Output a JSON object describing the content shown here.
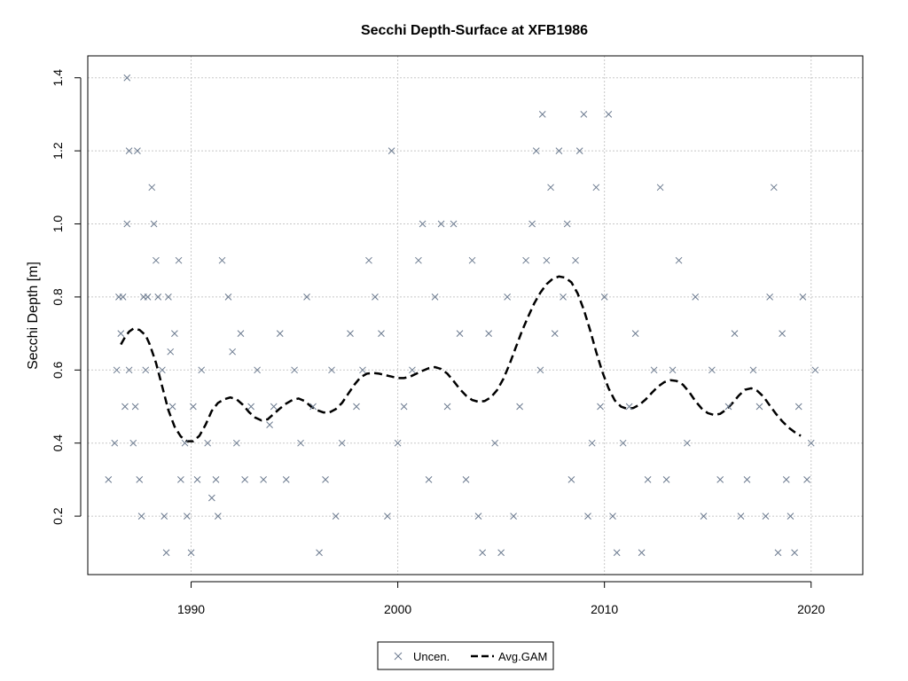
{
  "chart_data": {
    "type": "scatter",
    "title": "Secchi Depth-Surface at XFB1986",
    "xlabel": "",
    "ylabel": "Secchi Depth [m]",
    "xlim": [
      1985,
      2022.5
    ],
    "ylim": [
      0.04,
      1.46
    ],
    "x_ticks": [
      1990,
      2000,
      2010,
      2020
    ],
    "y_ticks": [
      0.2,
      0.4,
      0.6,
      0.8,
      1.0,
      1.2,
      1.4
    ],
    "y_tick_labels": [
      "0.2",
      "0.4",
      "0.6",
      "0.8",
      "1.0",
      "1.2",
      "1.4"
    ],
    "grid": true,
    "legend_placement": "bottom-center",
    "colors": {
      "points": "#6b7a8f",
      "gam": "#000000",
      "grid": "#c8c8c8",
      "axis": "#000000"
    },
    "series": [
      {
        "name": "Uncen.",
        "kind": "scatter",
        "marker": "x"
      },
      {
        "name": "Avg.GAM",
        "kind": "line",
        "dash": "dashed"
      }
    ],
    "points": [
      [
        1986.0,
        0.3
      ],
      [
        1986.3,
        0.4
      ],
      [
        1986.4,
        0.6
      ],
      [
        1986.5,
        0.8
      ],
      [
        1986.6,
        0.7
      ],
      [
        1986.7,
        0.8
      ],
      [
        1986.8,
        0.5
      ],
      [
        1986.9,
        1.4
      ],
      [
        1986.9,
        1.0
      ],
      [
        1987.0,
        1.2
      ],
      [
        1987.0,
        0.6
      ],
      [
        1987.2,
        0.4
      ],
      [
        1987.3,
        0.5
      ],
      [
        1987.4,
        1.2
      ],
      [
        1987.5,
        0.3
      ],
      [
        1987.6,
        0.2
      ],
      [
        1987.7,
        0.8
      ],
      [
        1987.8,
        0.6
      ],
      [
        1987.9,
        0.8
      ],
      [
        1988.1,
        1.1
      ],
      [
        1988.2,
        1.0
      ],
      [
        1988.3,
        0.9
      ],
      [
        1988.4,
        0.8
      ],
      [
        1988.6,
        0.6
      ],
      [
        1988.7,
        0.2
      ],
      [
        1988.8,
        0.1
      ],
      [
        1988.9,
        0.8
      ],
      [
        1989.0,
        0.65
      ],
      [
        1989.1,
        0.5
      ],
      [
        1989.2,
        0.7
      ],
      [
        1989.4,
        0.9
      ],
      [
        1989.5,
        0.3
      ],
      [
        1989.7,
        0.4
      ],
      [
        1989.8,
        0.2
      ],
      [
        1990.0,
        0.1
      ],
      [
        1990.1,
        0.5
      ],
      [
        1990.3,
        0.3
      ],
      [
        1990.5,
        0.6
      ],
      [
        1990.8,
        0.4
      ],
      [
        1991.0,
        0.25
      ],
      [
        1991.2,
        0.3
      ],
      [
        1991.3,
        0.2
      ],
      [
        1991.5,
        0.9
      ],
      [
        1991.8,
        0.8
      ],
      [
        1992.0,
        0.65
      ],
      [
        1992.2,
        0.4
      ],
      [
        1992.4,
        0.7
      ],
      [
        1992.6,
        0.3
      ],
      [
        1992.9,
        0.5
      ],
      [
        1993.2,
        0.6
      ],
      [
        1993.5,
        0.3
      ],
      [
        1993.8,
        0.45
      ],
      [
        1994.0,
        0.5
      ],
      [
        1994.3,
        0.7
      ],
      [
        1994.6,
        0.3
      ],
      [
        1995.0,
        0.6
      ],
      [
        1995.3,
        0.4
      ],
      [
        1995.6,
        0.8
      ],
      [
        1995.9,
        0.5
      ],
      [
        1996.2,
        0.1
      ],
      [
        1996.5,
        0.3
      ],
      [
        1996.8,
        0.6
      ],
      [
        1997.0,
        0.2
      ],
      [
        1997.3,
        0.4
      ],
      [
        1997.7,
        0.7
      ],
      [
        1998.0,
        0.5
      ],
      [
        1998.3,
        0.6
      ],
      [
        1998.6,
        0.9
      ],
      [
        1998.9,
        0.8
      ],
      [
        1999.2,
        0.7
      ],
      [
        1999.5,
        0.2
      ],
      [
        1999.7,
        1.2
      ],
      [
        2000.0,
        0.4
      ],
      [
        2000.3,
        0.5
      ],
      [
        2000.7,
        0.6
      ],
      [
        2001.0,
        0.9
      ],
      [
        2001.2,
        1.0
      ],
      [
        2001.5,
        0.3
      ],
      [
        2001.8,
        0.8
      ],
      [
        2002.1,
        1.0
      ],
      [
        2002.4,
        0.5
      ],
      [
        2002.7,
        1.0
      ],
      [
        2003.0,
        0.7
      ],
      [
        2003.3,
        0.3
      ],
      [
        2003.6,
        0.9
      ],
      [
        2003.9,
        0.2
      ],
      [
        2004.1,
        0.1
      ],
      [
        2004.4,
        0.7
      ],
      [
        2004.7,
        0.4
      ],
      [
        2005.0,
        0.1
      ],
      [
        2005.3,
        0.8
      ],
      [
        2005.6,
        0.2
      ],
      [
        2005.9,
        0.5
      ],
      [
        2006.2,
        0.9
      ],
      [
        2006.5,
        1.0
      ],
      [
        2006.7,
        1.2
      ],
      [
        2006.9,
        0.6
      ],
      [
        2007.0,
        1.3
      ],
      [
        2007.2,
        0.9
      ],
      [
        2007.4,
        1.1
      ],
      [
        2007.6,
        0.7
      ],
      [
        2007.8,
        1.2
      ],
      [
        2008.0,
        0.8
      ],
      [
        2008.2,
        1.0
      ],
      [
        2008.4,
        0.3
      ],
      [
        2008.6,
        0.9
      ],
      [
        2008.8,
        1.2
      ],
      [
        2009.0,
        1.3
      ],
      [
        2009.2,
        0.2
      ],
      [
        2009.4,
        0.4
      ],
      [
        2009.6,
        1.1
      ],
      [
        2009.8,
        0.5
      ],
      [
        2010.0,
        0.8
      ],
      [
        2010.2,
        1.3
      ],
      [
        2010.4,
        0.2
      ],
      [
        2010.6,
        0.1
      ],
      [
        2010.9,
        0.4
      ],
      [
        2011.2,
        0.5
      ],
      [
        2011.5,
        0.7
      ],
      [
        2011.8,
        0.1
      ],
      [
        2012.1,
        0.3
      ],
      [
        2012.4,
        0.6
      ],
      [
        2012.7,
        1.1
      ],
      [
        2013.0,
        0.3
      ],
      [
        2013.3,
        0.6
      ],
      [
        2013.6,
        0.9
      ],
      [
        2014.0,
        0.4
      ],
      [
        2014.4,
        0.8
      ],
      [
        2014.8,
        0.2
      ],
      [
        2015.2,
        0.6
      ],
      [
        2015.6,
        0.3
      ],
      [
        2016.0,
        0.5
      ],
      [
        2016.3,
        0.7
      ],
      [
        2016.6,
        0.2
      ],
      [
        2016.9,
        0.3
      ],
      [
        2017.2,
        0.6
      ],
      [
        2017.5,
        0.5
      ],
      [
        2017.8,
        0.2
      ],
      [
        2018.0,
        0.8
      ],
      [
        2018.2,
        1.1
      ],
      [
        2018.4,
        0.1
      ],
      [
        2018.6,
        0.7
      ],
      [
        2018.8,
        0.3
      ],
      [
        2019.0,
        0.2
      ],
      [
        2019.2,
        0.1
      ],
      [
        2019.4,
        0.5
      ],
      [
        2019.6,
        0.8
      ],
      [
        2019.8,
        0.3
      ],
      [
        2020.0,
        0.4
      ],
      [
        2020.2,
        0.6
      ]
    ],
    "gam": [
      [
        1986.6,
        0.67
      ],
      [
        1986.8,
        0.69
      ],
      [
        1987.0,
        0.705
      ],
      [
        1987.2,
        0.713
      ],
      [
        1987.5,
        0.71
      ],
      [
        1987.8,
        0.695
      ],
      [
        1988.0,
        0.67
      ],
      [
        1988.3,
        0.62
      ],
      [
        1988.6,
        0.555
      ],
      [
        1988.9,
        0.49
      ],
      [
        1989.2,
        0.445
      ],
      [
        1989.5,
        0.418
      ],
      [
        1989.8,
        0.405
      ],
      [
        1990.1,
        0.405
      ],
      [
        1990.4,
        0.42
      ],
      [
        1990.7,
        0.45
      ],
      [
        1991.0,
        0.488
      ],
      [
        1991.3,
        0.51
      ],
      [
        1991.6,
        0.52
      ],
      [
        1991.9,
        0.525
      ],
      [
        1992.2,
        0.52
      ],
      [
        1992.5,
        0.505
      ],
      [
        1992.8,
        0.485
      ],
      [
        1993.1,
        0.47
      ],
      [
        1993.4,
        0.462
      ],
      [
        1993.7,
        0.465
      ],
      [
        1994.0,
        0.48
      ],
      [
        1994.3,
        0.495
      ],
      [
        1994.6,
        0.508
      ],
      [
        1994.9,
        0.518
      ],
      [
        1995.2,
        0.522
      ],
      [
        1995.5,
        0.515
      ],
      [
        1995.8,
        0.5
      ],
      [
        1996.1,
        0.49
      ],
      [
        1996.4,
        0.484
      ],
      [
        1996.7,
        0.484
      ],
      [
        1997.0,
        0.493
      ],
      [
        1997.3,
        0.51
      ],
      [
        1997.6,
        0.535
      ],
      [
        1997.9,
        0.56
      ],
      [
        1998.2,
        0.58
      ],
      [
        1998.5,
        0.59
      ],
      [
        1998.8,
        0.592
      ],
      [
        1999.1,
        0.59
      ],
      [
        1999.4,
        0.586
      ],
      [
        1999.7,
        0.582
      ],
      [
        2000.0,
        0.578
      ],
      [
        2000.3,
        0.578
      ],
      [
        2000.6,
        0.582
      ],
      [
        2000.9,
        0.59
      ],
      [
        2001.2,
        0.598
      ],
      [
        2001.5,
        0.605
      ],
      [
        2001.8,
        0.608
      ],
      [
        2002.1,
        0.603
      ],
      [
        2002.4,
        0.59
      ],
      [
        2002.7,
        0.57
      ],
      [
        2003.0,
        0.548
      ],
      [
        2003.3,
        0.53
      ],
      [
        2003.6,
        0.518
      ],
      [
        2003.9,
        0.513
      ],
      [
        2004.2,
        0.515
      ],
      [
        2004.5,
        0.525
      ],
      [
        2004.8,
        0.545
      ],
      [
        2005.1,
        0.575
      ],
      [
        2005.4,
        0.615
      ],
      [
        2005.7,
        0.66
      ],
      [
        2006.0,
        0.705
      ],
      [
        2006.3,
        0.745
      ],
      [
        2006.6,
        0.782
      ],
      [
        2006.9,
        0.812
      ],
      [
        2007.2,
        0.835
      ],
      [
        2007.5,
        0.85
      ],
      [
        2007.8,
        0.856
      ],
      [
        2008.1,
        0.853
      ],
      [
        2008.4,
        0.84
      ],
      [
        2008.7,
        0.81
      ],
      [
        2009.0,
        0.765
      ],
      [
        2009.3,
        0.71
      ],
      [
        2009.6,
        0.65
      ],
      [
        2009.9,
        0.595
      ],
      [
        2010.2,
        0.55
      ],
      [
        2010.5,
        0.517
      ],
      [
        2010.8,
        0.5
      ],
      [
        2011.1,
        0.494
      ],
      [
        2011.4,
        0.496
      ],
      [
        2011.7,
        0.505
      ],
      [
        2012.0,
        0.52
      ],
      [
        2012.3,
        0.538
      ],
      [
        2012.6,
        0.555
      ],
      [
        2012.9,
        0.567
      ],
      [
        2013.2,
        0.572
      ],
      [
        2013.5,
        0.57
      ],
      [
        2013.8,
        0.56
      ],
      [
        2014.1,
        0.54
      ],
      [
        2014.4,
        0.515
      ],
      [
        2014.7,
        0.495
      ],
      [
        2015.0,
        0.482
      ],
      [
        2015.3,
        0.477
      ],
      [
        2015.6,
        0.48
      ],
      [
        2015.9,
        0.492
      ],
      [
        2016.2,
        0.51
      ],
      [
        2016.5,
        0.53
      ],
      [
        2016.8,
        0.546
      ],
      [
        2017.1,
        0.55
      ],
      [
        2017.4,
        0.543
      ],
      [
        2017.7,
        0.527
      ],
      [
        2018.0,
        0.503
      ],
      [
        2018.3,
        0.48
      ],
      [
        2018.6,
        0.46
      ],
      [
        2018.9,
        0.443
      ],
      [
        2019.2,
        0.43
      ],
      [
        2019.5,
        0.42
      ]
    ]
  }
}
